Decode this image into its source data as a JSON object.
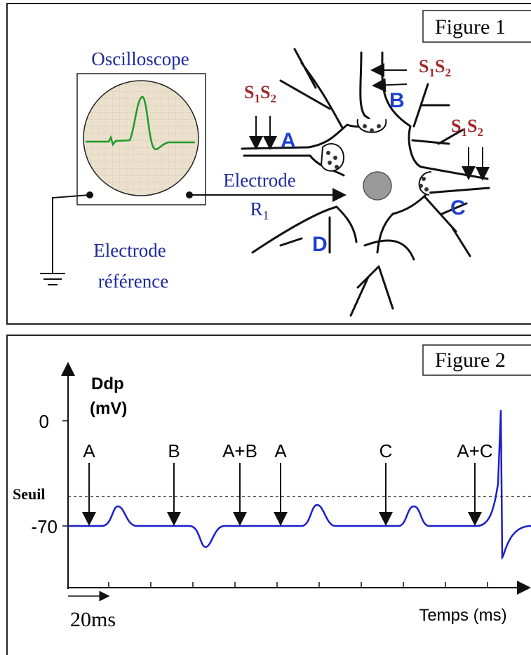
{
  "figure1": {
    "label": "Figure 1",
    "oscilloscope": "Oscilloscope",
    "electrode": "Electrode",
    "r1": {
      "base": "R",
      "sub": "1"
    },
    "reference": [
      "Electrode",
      "référence"
    ],
    "stimulators": [
      [
        "S",
        "1",
        "S",
        "2"
      ],
      [
        "S",
        "1",
        "S",
        "2"
      ],
      [
        "S",
        "1",
        "S",
        "2"
      ]
    ],
    "neurons": [
      "A",
      "B",
      "C",
      "D"
    ]
  },
  "figure2": {
    "label": "Figure 2",
    "y_axis": [
      "Ddp",
      "(mV)"
    ],
    "y_ticks": [
      "0",
      "Seuil",
      "-70"
    ],
    "x_axis": "Temps (ms)",
    "scale": "20ms",
    "stimuli": [
      "A",
      "B",
      "A+B",
      "A",
      "C",
      "A+C"
    ]
  }
}
